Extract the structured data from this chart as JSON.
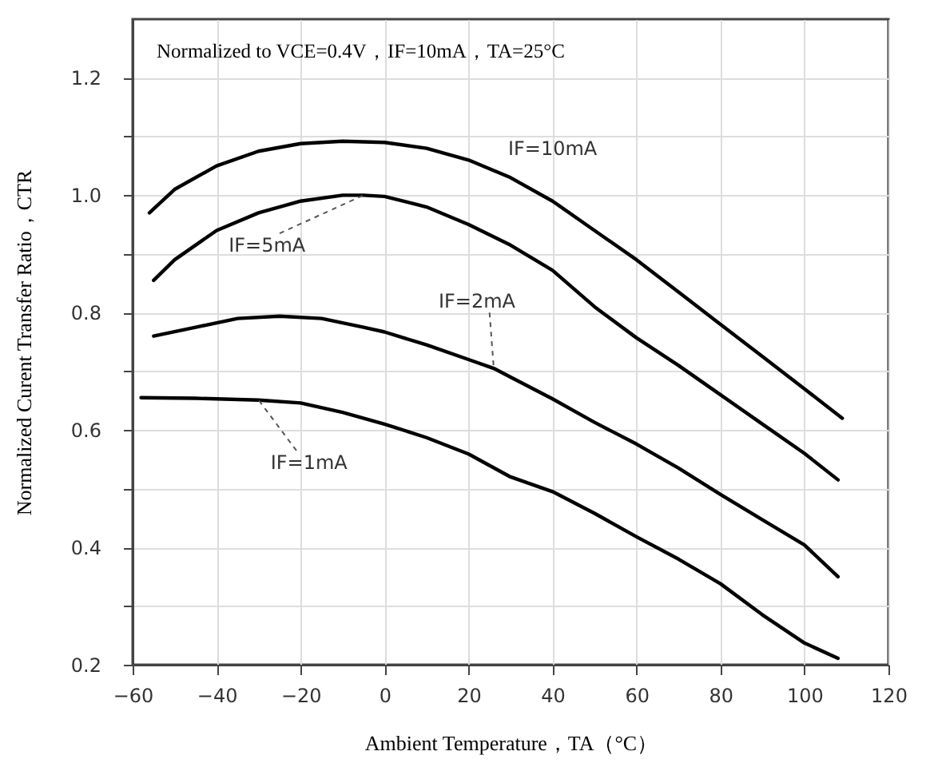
{
  "chart_data": {
    "type": "line",
    "xlabel": "Ambient Temperature，TA（°C）",
    "ylabel": "Normalized Curent Transfer Ratio，CTR",
    "annotations": [
      "Normalized to VCE=0.4V，IF=10mA，TA=25°C"
    ],
    "xlim": [
      -60,
      120
    ],
    "xticks": [
      -60,
      -40,
      -20,
      0,
      20,
      40,
      60,
      80,
      100,
      120
    ],
    "ylim": [
      0.2,
      1.3
    ],
    "yticks": [
      {
        "value": 0.2,
        "label": "0.2"
      },
      {
        "value": 0.3,
        "label": null
      },
      {
        "value": 0.4,
        "label": "0.4"
      },
      {
        "value": 0.5,
        "label": null
      },
      {
        "value": 0.6,
        "label": "0.6"
      },
      {
        "value": 0.7,
        "label": null
      },
      {
        "value": 0.8,
        "label": "0.8"
      },
      {
        "value": 0.9,
        "label": null
      },
      {
        "value": 1.0,
        "label": "1.0"
      },
      {
        "value": 1.1,
        "label": null
      },
      {
        "value": 1.2,
        "label": "1.2"
      }
    ],
    "grid": true,
    "marker": "none",
    "line_style": "solid",
    "series": [
      {
        "name": "IF=10mA",
        "color": "#000000",
        "x": [
          -56,
          -50,
          -40,
          -30,
          -20,
          -10,
          0,
          10,
          20,
          30,
          40,
          50,
          60,
          70,
          80,
          90,
          100,
          109
        ],
        "values": [
          0.97,
          1.01,
          1.05,
          1.075,
          1.088,
          1.092,
          1.09,
          1.08,
          1.06,
          1.03,
          0.99,
          0.94,
          0.89,
          0.835,
          0.78,
          0.725,
          0.67,
          0.62
        ]
      },
      {
        "name": "IF=5mA",
        "color": "#000000",
        "x": [
          -55,
          -50,
          -40,
          -30,
          -20,
          -10,
          -5,
          0,
          10,
          20,
          30,
          40,
          50,
          60,
          70,
          80,
          90,
          100,
          108
        ],
        "values": [
          0.855,
          0.89,
          0.94,
          0.97,
          0.99,
          1.0,
          1.0,
          0.998,
          0.98,
          0.95,
          0.915,
          0.872,
          0.81,
          0.757,
          0.71,
          0.66,
          0.61,
          0.56,
          0.515
        ]
      },
      {
        "name": "IF=2mA",
        "color": "#000000",
        "x": [
          -55,
          -45,
          -35,
          -25,
          -15,
          -5,
          0,
          10,
          20,
          26,
          30,
          40,
          50,
          60,
          70,
          80,
          90,
          100,
          108
        ],
        "values": [
          0.76,
          0.775,
          0.79,
          0.794,
          0.79,
          0.775,
          0.767,
          0.745,
          0.72,
          0.705,
          0.69,
          0.653,
          0.613,
          0.576,
          0.535,
          0.49,
          0.447,
          0.404,
          0.35
        ]
      },
      {
        "name": "IF=1mA",
        "color": "#000000",
        "x": [
          -58,
          -45,
          -30,
          -20,
          -10,
          0,
          10,
          20,
          30,
          40,
          50,
          60,
          70,
          80,
          90,
          100,
          108
        ],
        "values": [
          0.655,
          0.654,
          0.651,
          0.646,
          0.63,
          0.61,
          0.587,
          0.559,
          0.52,
          0.495,
          0.458,
          0.418,
          0.38,
          0.338,
          0.285,
          0.237,
          0.211
        ]
      }
    ]
  }
}
